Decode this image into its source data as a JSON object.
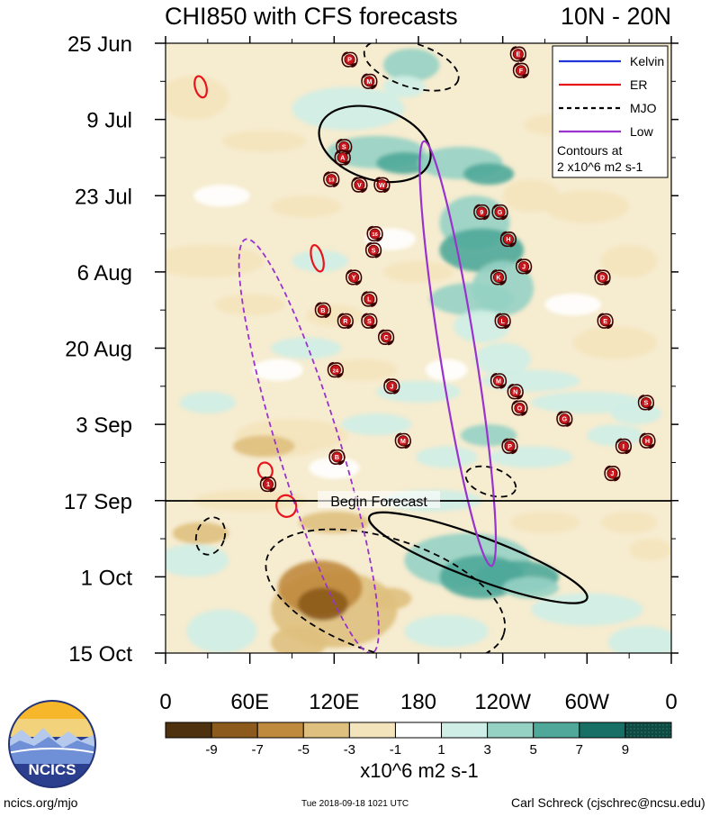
{
  "title": {
    "left": "CHI850 with CFS forecasts",
    "right": "10N - 20N"
  },
  "footer": {
    "url": "ncics.org/mjo",
    "timestamp": "Tue 2018-09-18 1021 UTC",
    "author": "Carl Schreck (cjschrec@ncsu.edu)",
    "logo_text": "NCICS"
  },
  "chart_data": {
    "type": "heatmap",
    "title": "CHI850 with CFS forecasts",
    "subtitle": "10N - 20N",
    "x_ticks": [
      "0",
      "60E",
      "120E",
      "180",
      "120W",
      "60W",
      "0"
    ],
    "x_range_deg": [
      0,
      360
    ],
    "y_ticks": [
      "25 Jun",
      "9 Jul",
      "23 Jul",
      "6 Aug",
      "20 Aug",
      "3 Sep",
      "17 Sep",
      "1 Oct",
      "15 Oct"
    ],
    "y_range_days_from_25Jun": [
      0,
      112
    ],
    "forecast_start_day": 84,
    "forecast_label": "Begin Forecast",
    "legend": {
      "entries": [
        {
          "label": "Kelvin",
          "color": "#1f35d6",
          "style": "solid"
        },
        {
          "label": "ER",
          "color": "#e8141c",
          "style": "solid"
        },
        {
          "label": "MJO",
          "color": "#000000",
          "style": "dashed"
        },
        {
          "label": "Low",
          "color": "#9a32cd",
          "style": "solid"
        }
      ],
      "note_line1": "Contours at",
      "note_line2": "2 x10^6 m2 s-1",
      "placement": "top-right"
    },
    "colorbar": {
      "levels": [
        "-9",
        "-7",
        "-5",
        "-3",
        "-1",
        "1",
        "3",
        "5",
        "7",
        "9"
      ],
      "colors": [
        "#4e3210",
        "#8c5a1c",
        "#c08a3e",
        "#dfc07e",
        "#f4e4bc",
        "#ffffff",
        "#cfeee6",
        "#96d2c4",
        "#4fa89a",
        "#176f66",
        "#0d4a42"
      ],
      "label": "x10^6 m2 s-1"
    },
    "contours": [
      {
        "type": "ER",
        "lon_range": [
          21,
          29
        ],
        "day_range": [
          6,
          10
        ]
      },
      {
        "type": "ER",
        "lon_range": [
          104,
          112
        ],
        "day_range": [
          37,
          42
        ]
      },
      {
        "type": "ER",
        "lon_range": [
          66,
          76
        ],
        "day_range": [
          77,
          80
        ]
      },
      {
        "type": "ER",
        "lon_range": [
          79,
          93
        ],
        "day_range": [
          83,
          87
        ]
      },
      {
        "type": "MJO-positive",
        "lon_range": [
          108,
          190
        ],
        "day_range": [
          12,
          25
        ]
      },
      {
        "type": "MJO-positive",
        "lon_range": [
          145,
          300
        ],
        "day_range": [
          87,
          102
        ]
      },
      {
        "type": "MJO-negative",
        "lon_range": [
          140,
          210
        ],
        "day_range": [
          0,
          8
        ]
      },
      {
        "type": "MJO-negative",
        "lon_range": [
          22,
          42
        ],
        "day_range": [
          87,
          94
        ]
      },
      {
        "type": "MJO-negative",
        "lon_range": [
          68,
          245
        ],
        "day_range": [
          91,
          112
        ]
      },
      {
        "type": "MJO-negative",
        "lon_range": [
          213,
          250
        ],
        "day_range": [
          78,
          83
        ]
      },
      {
        "type": "Low-positive",
        "lon_range": [
          184,
          232
        ],
        "day_range": [
          18,
          96
        ]
      },
      {
        "type": "Low-negative",
        "lon_range": [
          57,
          147
        ],
        "day_range": [
          36,
          112
        ]
      }
    ],
    "storm_markers": [
      {
        "label": "P",
        "lon": 131,
        "day": 3
      },
      {
        "label": "M",
        "lon": 145,
        "day": 7
      },
      {
        "label": "E",
        "lon": 251,
        "day": 2
      },
      {
        "label": "F",
        "lon": 253,
        "day": 5
      },
      {
        "label": "S",
        "lon": 127,
        "day": 19
      },
      {
        "label": "A",
        "lon": 126,
        "day": 21
      },
      {
        "label": "13",
        "lon": 118,
        "day": 25
      },
      {
        "label": "V",
        "lon": 138,
        "day": 26
      },
      {
        "label": "W",
        "lon": 154,
        "day": 26
      },
      {
        "label": "9",
        "lon": 225,
        "day": 31
      },
      {
        "label": "G",
        "lon": 238,
        "day": 31
      },
      {
        "label": "16",
        "lon": 149,
        "day": 35
      },
      {
        "label": "S",
        "lon": 148,
        "day": 38
      },
      {
        "label": "H",
        "lon": 244,
        "day": 36
      },
      {
        "label": "J",
        "lon": 255,
        "day": 41
      },
      {
        "label": "K",
        "lon": 237,
        "day": 43
      },
      {
        "label": "Y",
        "lon": 134,
        "day": 43
      },
      {
        "label": "D",
        "lon": 311,
        "day": 43
      },
      {
        "label": "L",
        "lon": 145,
        "day": 47
      },
      {
        "label": "B",
        "lon": 112,
        "day": 49
      },
      {
        "label": "R",
        "lon": 128,
        "day": 51
      },
      {
        "label": "S",
        "lon": 145,
        "day": 51
      },
      {
        "label": "L",
        "lon": 240,
        "day": 51
      },
      {
        "label": "E",
        "lon": 313,
        "day": 51
      },
      {
        "label": "C",
        "lon": 157,
        "day": 54
      },
      {
        "label": "24",
        "lon": 121,
        "day": 60
      },
      {
        "label": "J",
        "lon": 161,
        "day": 63
      },
      {
        "label": "M",
        "lon": 237,
        "day": 62
      },
      {
        "label": "N",
        "lon": 249,
        "day": 64
      },
      {
        "label": "O",
        "lon": 252,
        "day": 67
      },
      {
        "label": "S",
        "lon": 342,
        "day": 66
      },
      {
        "label": "G",
        "lon": 284,
        "day": 69
      },
      {
        "label": "M",
        "lon": 169,
        "day": 73
      },
      {
        "label": "P",
        "lon": 245,
        "day": 74
      },
      {
        "label": "I",
        "lon": 326,
        "day": 74
      },
      {
        "label": "H",
        "lon": 343,
        "day": 73
      },
      {
        "label": "B",
        "lon": 122,
        "day": 76
      },
      {
        "label": "J",
        "lon": 318,
        "day": 79
      },
      {
        "label": "1",
        "lon": 73,
        "day": 81
      }
    ]
  }
}
